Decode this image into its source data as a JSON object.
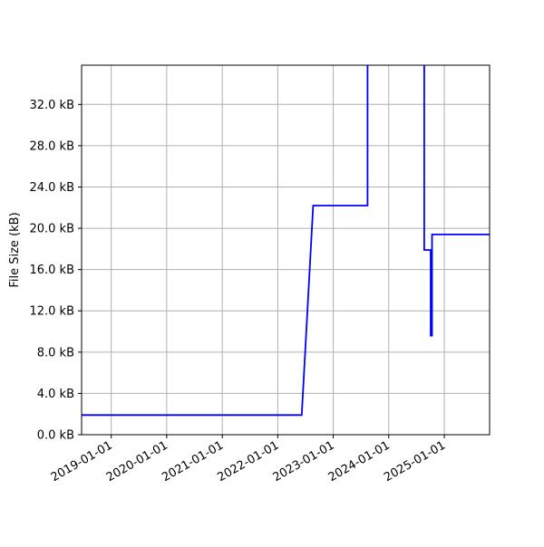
{
  "chart_data": {
    "type": "line",
    "title": "",
    "xlabel": "",
    "ylabel": "File Size (kB)",
    "xlim": [
      "2018-06-20",
      "2025-10-26"
    ],
    "ylim": [
      0,
      35.8
    ],
    "grid": true,
    "line_color": "#0000ff",
    "x_ticks": [
      "2019-01-01",
      "2020-01-01",
      "2021-01-01",
      "2022-01-01",
      "2023-01-01",
      "2024-01-01",
      "2025-01-01"
    ],
    "y_ticks": [
      0,
      4,
      8,
      12,
      16,
      20,
      24,
      28,
      32
    ],
    "y_tick_labels": [
      "0.0 kB",
      "4.0 kB",
      "8.0 kB",
      "12.0 kB",
      "16.0 kB",
      "20.0 kB",
      "24.0 kB",
      "28.0 kB",
      "32.0 kB"
    ],
    "series": [
      {
        "x": [
          "2018-06-20",
          "2022-06-08",
          "2022-08-22",
          "2023-08-15",
          "2023-08-15",
          "2024-08-22",
          "2024-08-22",
          "2024-09-27",
          "2024-10-03",
          "2024-10-03",
          "2024-10-12",
          "2024-10-12",
          "2025-10-26"
        ],
        "y": [
          1.9,
          1.9,
          22.2,
          22.2,
          40,
          40,
          17.9,
          17.9,
          17.9,
          9.6,
          9.6,
          19.4,
          19.4
        ]
      }
    ]
  }
}
